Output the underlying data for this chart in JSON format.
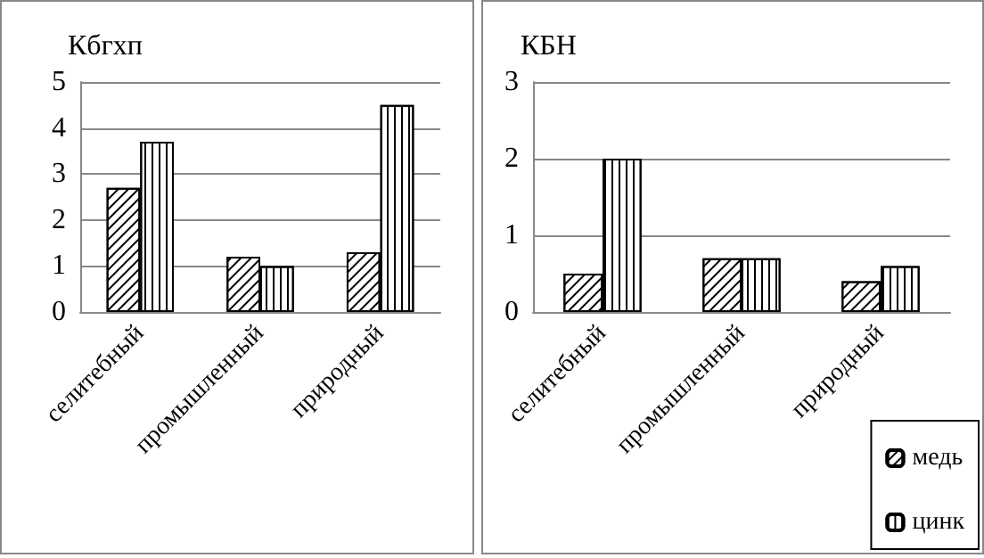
{
  "chart_data": [
    {
      "type": "bar",
      "title": "Кбгхп",
      "categories": [
        "селитебный",
        "промышленный",
        "природный"
      ],
      "series": [
        {
          "color": "#000000",
          "values": [
            2.7,
            1.2,
            1.3
          ]
        },
        {
          "color": "#000000",
          "values": [
            3.7,
            1.0,
            4.5
          ]
        }
      ],
      "ylim": [
        0,
        5
      ],
      "yticks": [
        0,
        1,
        2,
        3,
        4,
        5
      ],
      "grid": "y",
      "legend": false
    },
    {
      "type": "bar",
      "title": "КБН",
      "categories": [
        "селитебный",
        "промышленный",
        "природный"
      ],
      "series": [
        {
          "name": "медь",
          "color": "#000000",
          "values": [
            0.5,
            0.7,
            0.4
          ]
        },
        {
          "name": "цинк",
          "color": "#000000",
          "values": [
            2.0,
            0.7,
            0.6
          ]
        }
      ],
      "ylim": [
        0,
        3
      ],
      "yticks": [
        0,
        1,
        2,
        3
      ],
      "grid": "y",
      "legend": "bottom right"
    }
  ]
}
